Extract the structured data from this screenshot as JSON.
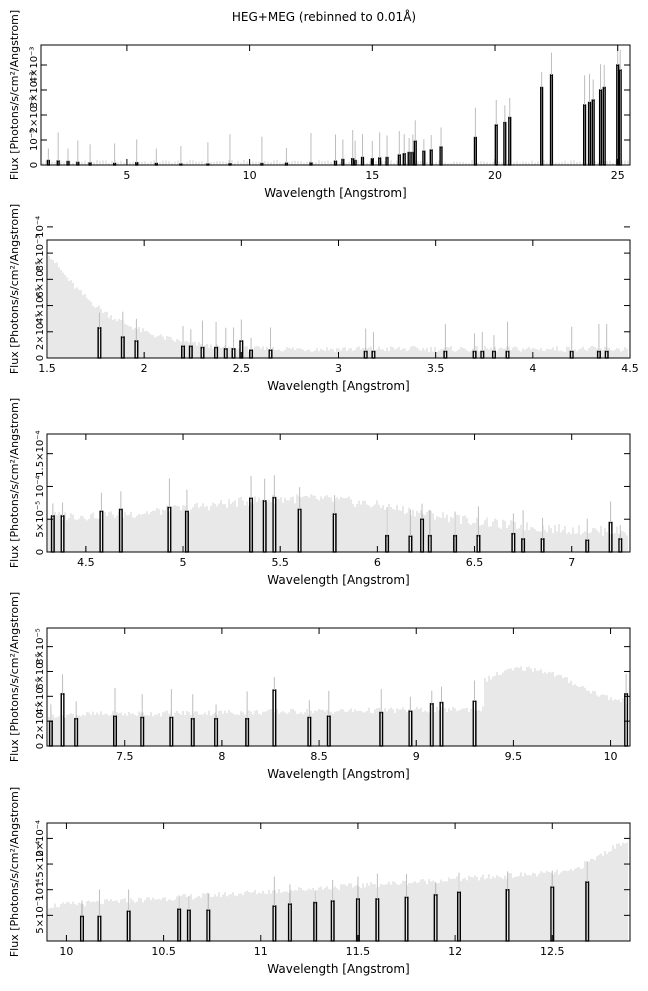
{
  "title": "HEG+MEG (rebinned to 0.01Å)",
  "chart_data": [
    {
      "type": "bar",
      "xlabel": "Wavelength [Angstrom]",
      "ylabel": "Flux [Photons/s/cm²/Angstrom]",
      "xlim": [
        1.5,
        25.5
      ],
      "ylim": [
        0,
        0.0048
      ],
      "xticks": [
        5,
        10,
        15,
        20,
        25
      ],
      "ytick_labels": [
        "0",
        "10⁻³",
        "2×10⁻³",
        "3×10⁻³",
        "4×10⁻³"
      ],
      "ytick_values": [
        0,
        0.001,
        0.002,
        0.003,
        0.004
      ],
      "lines": [
        {
          "x": 1.8,
          "y": 0.00018
        },
        {
          "x": 2.2,
          "y": 0.00016
        },
        {
          "x": 2.6,
          "y": 0.00014
        },
        {
          "x": 3.0,
          "y": 0.0001
        },
        {
          "x": 3.5,
          "y": 8e-05
        },
        {
          "x": 4.5,
          "y": 6e-05
        },
        {
          "x": 5.4,
          "y": 9e-05
        },
        {
          "x": 6.2,
          "y": 6e-05
        },
        {
          "x": 7.2,
          "y": 4e-05
        },
        {
          "x": 8.3,
          "y": 4e-05
        },
        {
          "x": 9.2,
          "y": 5e-05
        },
        {
          "x": 10.5,
          "y": 6e-05
        },
        {
          "x": 11.5,
          "y": 7e-05
        },
        {
          "x": 12.5,
          "y": 8e-05
        },
        {
          "x": 13.5,
          "y": 0.00015
        },
        {
          "x": 13.8,
          "y": 0.00022
        },
        {
          "x": 14.2,
          "y": 0.00025
        },
        {
          "x": 14.3,
          "y": 0.00018
        },
        {
          "x": 14.6,
          "y": 0.0003
        },
        {
          "x": 15.0,
          "y": 0.00025
        },
        {
          "x": 15.3,
          "y": 0.00028
        },
        {
          "x": 15.6,
          "y": 0.0003
        },
        {
          "x": 16.1,
          "y": 0.0004
        },
        {
          "x": 16.3,
          "y": 0.00045
        },
        {
          "x": 16.5,
          "y": 0.0005
        },
        {
          "x": 16.65,
          "y": 0.0005
        },
        {
          "x": 16.75,
          "y": 0.00095
        },
        {
          "x": 17.1,
          "y": 0.00055
        },
        {
          "x": 17.4,
          "y": 0.0006
        },
        {
          "x": 17.8,
          "y": 0.00072
        },
        {
          "x": 19.2,
          "y": 0.0011
        },
        {
          "x": 20.05,
          "y": 0.0016
        },
        {
          "x": 20.4,
          "y": 0.0017
        },
        {
          "x": 20.6,
          "y": 0.0019
        },
        {
          "x": 21.9,
          "y": 0.0031
        },
        {
          "x": 22.3,
          "y": 0.0036
        },
        {
          "x": 23.65,
          "y": 0.0024
        },
        {
          "x": 23.85,
          "y": 0.0025
        },
        {
          "x": 24.0,
          "y": 0.0026
        },
        {
          "x": 24.3,
          "y": 0.003
        },
        {
          "x": 24.45,
          "y": 0.0031
        },
        {
          "x": 25.0,
          "y": 0.004
        },
        {
          "x": 25.1,
          "y": 0.0038
        }
      ]
    },
    {
      "type": "bar",
      "xlabel": "Wavelength [Angstrom]",
      "ylabel": "Flux [Photons/s/cm²/Angstrom]",
      "xlim": [
        1.5,
        4.5
      ],
      "ylim": [
        0,
        9e-05
      ],
      "xticks": [
        1.5,
        2,
        2.5,
        3,
        3.5,
        4,
        4.5
      ],
      "ytick_labels": [
        "0",
        "2×10⁻⁵",
        "4×10⁻⁵",
        "6×10⁻⁵",
        "8×10⁻⁵",
        "10⁻⁴"
      ],
      "ytick_values": [
        0,
        2e-05,
        4e-05,
        6e-05,
        8e-05,
        0.0001
      ],
      "lines": [
        {
          "x": 1.77,
          "y": 2.3e-05
        },
        {
          "x": 1.89,
          "y": 1.6e-05
        },
        {
          "x": 1.96,
          "y": 1.3e-05
        },
        {
          "x": 2.2,
          "y": 9e-06
        },
        {
          "x": 2.24,
          "y": 9e-06
        },
        {
          "x": 2.3,
          "y": 8e-06
        },
        {
          "x": 2.37,
          "y": 8e-06
        },
        {
          "x": 2.42,
          "y": 7e-06
        },
        {
          "x": 2.46,
          "y": 7e-06
        },
        {
          "x": 2.5,
          "y": 1.3e-05
        },
        {
          "x": 2.55,
          "y": 6e-06
        },
        {
          "x": 2.65,
          "y": 6e-06
        },
        {
          "x": 3.14,
          "y": 5e-06
        },
        {
          "x": 3.18,
          "y": 5e-06
        },
        {
          "x": 3.55,
          "y": 5e-06
        },
        {
          "x": 3.7,
          "y": 5e-06
        },
        {
          "x": 3.74,
          "y": 5e-06
        },
        {
          "x": 3.8,
          "y": 5e-06
        },
        {
          "x": 3.87,
          "y": 5e-06
        },
        {
          "x": 4.2,
          "y": 5e-06
        },
        {
          "x": 4.34,
          "y": 5e-06
        },
        {
          "x": 4.38,
          "y": 5e-06
        }
      ]
    },
    {
      "type": "bar",
      "xlabel": "Wavelength [Angstrom]",
      "ylabel": "Flux [Photons/s/cm²/Angstrom]",
      "xlim": [
        4.3,
        7.3
      ],
      "ylim": [
        0,
        0.00018
      ],
      "xticks": [
        4.5,
        5,
        5.5,
        6,
        6.5,
        7
      ],
      "ytick_labels": [
        "0",
        "5×10⁻⁵",
        "10⁻⁴",
        "1.5×10⁻⁴"
      ],
      "ytick_values": [
        0,
        5e-05,
        0.0001,
        0.00015
      ],
      "lines": [
        {
          "x": 4.33,
          "y": 5.5e-05
        },
        {
          "x": 4.38,
          "y": 5.5e-05
        },
        {
          "x": 4.58,
          "y": 6.2e-05
        },
        {
          "x": 4.68,
          "y": 6.5e-05
        },
        {
          "x": 4.93,
          "y": 6.8e-05
        },
        {
          "x": 5.02,
          "y": 6.2e-05
        },
        {
          "x": 5.35,
          "y": 8.2e-05
        },
        {
          "x": 5.42,
          "y": 7.8e-05
        },
        {
          "x": 5.47,
          "y": 8.3e-05
        },
        {
          "x": 5.6,
          "y": 6.5e-05
        },
        {
          "x": 5.78,
          "y": 5.8e-05
        },
        {
          "x": 6.05,
          "y": 2.5e-05
        },
        {
          "x": 6.17,
          "y": 2.4e-05
        },
        {
          "x": 6.23,
          "y": 5e-05
        },
        {
          "x": 6.27,
          "y": 2.5e-05
        },
        {
          "x": 6.4,
          "y": 2.5e-05
        },
        {
          "x": 6.52,
          "y": 2.5e-05
        },
        {
          "x": 6.7,
          "y": 2.8e-05
        },
        {
          "x": 6.75,
          "y": 2e-05
        },
        {
          "x": 6.85,
          "y": 2e-05
        },
        {
          "x": 7.08,
          "y": 1.8e-05
        },
        {
          "x": 7.2,
          "y": 4.5e-05
        },
        {
          "x": 7.25,
          "y": 2e-05
        }
      ]
    },
    {
      "type": "bar",
      "xlabel": "Wavelength [Angstrom]",
      "ylabel": "Flux [Photons/s/cm²/Angstrom]",
      "xlim": [
        7.1,
        10.1
      ],
      "ylim": [
        0,
        9.5e-05
      ],
      "xticks": [
        7.5,
        8,
        8.5,
        9,
        9.5,
        10
      ],
      "ytick_labels": [
        "0",
        "2×10⁻⁵",
        "4×10⁻⁵",
        "6×10⁻⁵",
        "8×10⁻⁵"
      ],
      "ytick_values": [
        0,
        2e-05,
        4e-05,
        6e-05,
        8e-05
      ],
      "lines": [
        {
          "x": 7.12,
          "y": 2e-05
        },
        {
          "x": 7.18,
          "y": 4.2e-05
        },
        {
          "x": 7.25,
          "y": 2.2e-05
        },
        {
          "x": 7.45,
          "y": 2.4e-05
        },
        {
          "x": 7.59,
          "y": 2.3e-05
        },
        {
          "x": 7.74,
          "y": 2.3e-05
        },
        {
          "x": 7.85,
          "y": 2.2e-05
        },
        {
          "x": 7.97,
          "y": 2.2e-05
        },
        {
          "x": 8.13,
          "y": 2.2e-05
        },
        {
          "x": 8.27,
          "y": 4.5e-05
        },
        {
          "x": 8.45,
          "y": 2.3e-05
        },
        {
          "x": 8.55,
          "y": 2.4e-05
        },
        {
          "x": 8.82,
          "y": 2.7e-05
        },
        {
          "x": 8.97,
          "y": 2.8e-05
        },
        {
          "x": 9.08,
          "y": 3.4e-05
        },
        {
          "x": 9.13,
          "y": 3.5e-05
        },
        {
          "x": 9.3,
          "y": 3.6e-05
        },
        {
          "x": 10.08,
          "y": 4.2e-05
        }
      ]
    },
    {
      "type": "bar",
      "xlabel": "Wavelength [Angstrom]",
      "ylabel": "Flux [Photons/s/cm²/Angstrom]",
      "xlim": [
        9.9,
        12.9
      ],
      "ylim": [
        0,
        0.00023
      ],
      "xticks": [
        10,
        10.5,
        11,
        11.5,
        12,
        12.5
      ],
      "ytick_labels": [
        "5×10⁻⁵",
        "10⁻⁴",
        "1.5×10⁻⁴",
        "2×10⁻⁴"
      ],
      "ytick_values": [
        5e-05,
        0.0001,
        0.00015,
        0.0002
      ],
      "lines": [
        {
          "x": 10.08,
          "y": 4.8e-05
        },
        {
          "x": 10.17,
          "y": 4.8e-05
        },
        {
          "x": 10.32,
          "y": 5.8e-05
        },
        {
          "x": 10.58,
          "y": 6.2e-05
        },
        {
          "x": 10.63,
          "y": 6e-05
        },
        {
          "x": 10.73,
          "y": 6e-05
        },
        {
          "x": 11.07,
          "y": 6.8e-05
        },
        {
          "x": 11.15,
          "y": 7.2e-05
        },
        {
          "x": 11.28,
          "y": 7.5e-05
        },
        {
          "x": 11.37,
          "y": 7.8e-05
        },
        {
          "x": 11.5,
          "y": 8.2e-05
        },
        {
          "x": 11.6,
          "y": 8.2e-05
        },
        {
          "x": 11.75,
          "y": 8.5e-05
        },
        {
          "x": 11.9,
          "y": 9e-05
        },
        {
          "x": 12.02,
          "y": 9.5e-05
        },
        {
          "x": 12.27,
          "y": 0.0001
        },
        {
          "x": 12.5,
          "y": 0.000105
        },
        {
          "x": 12.68,
          "y": 0.000115
        }
      ]
    }
  ]
}
